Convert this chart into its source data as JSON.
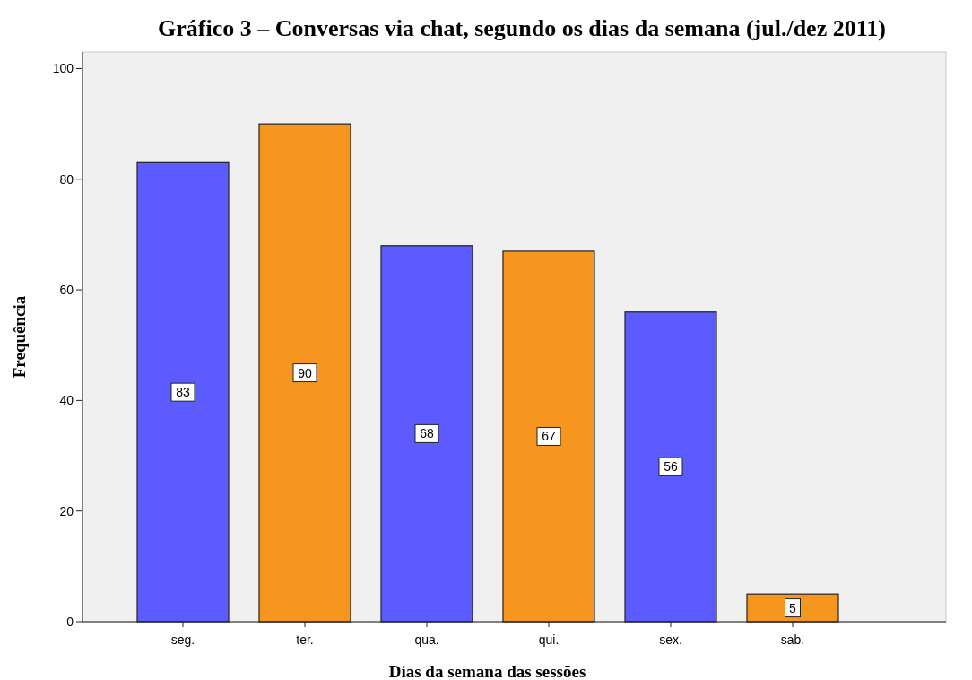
{
  "chart_data": {
    "type": "bar",
    "title": "Gráfico 3 – Conversas via chat, segundo os dias da semana (jul./dez 2011)",
    "xlabel": "Dias da semana das sessões",
    "ylabel": "Frequência",
    "categories": [
      "seg.",
      "ter.",
      "qua.",
      "qui.",
      "sex.",
      "sab."
    ],
    "values": [
      83,
      90,
      68,
      67,
      56,
      5
    ],
    "colors": [
      "#5b5bff",
      "#f7961e",
      "#5b5bff",
      "#f7961e",
      "#5b5bff",
      "#f7961e"
    ],
    "ylim": [
      0,
      103
    ],
    "yticks": [
      0,
      20,
      40,
      60,
      80,
      100
    ],
    "grid": false,
    "data_labels": true
  }
}
